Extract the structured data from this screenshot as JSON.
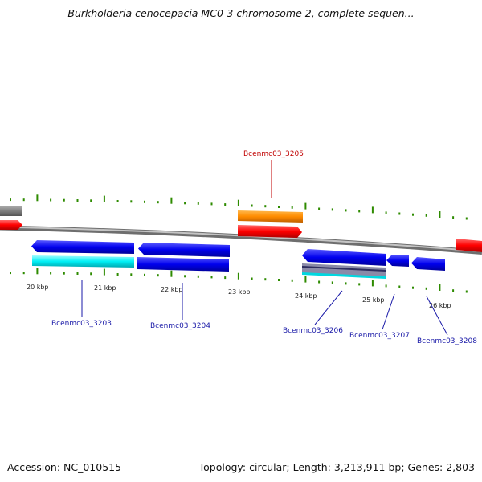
{
  "title": "Burkholderia cenocepacia MC0-3 chromosome 2, complete sequen...",
  "footer": {
    "accession": "Accession: NC_010515",
    "stats": "Topology: circular; Length: 3,213,911 bp; Genes: 2,803"
  },
  "scale_labels": [
    "20 kbp",
    "21 kbp",
    "22 kbp",
    "23 kbp",
    "24 kbp",
    "25 kbp",
    "26 kbp"
  ],
  "gene_labels": [
    {
      "id": "Bcenmc03_3205",
      "color": "#c00000"
    },
    {
      "id": "Bcenmc03_3203",
      "color": "#1a1aa8"
    },
    {
      "id": "Bcenmc03_3204",
      "color": "#1a1aa8"
    },
    {
      "id": "Bcenmc03_3206",
      "color": "#1a1aa8"
    },
    {
      "id": "Bcenmc03_3207",
      "color": "#1a1aa8"
    },
    {
      "id": "Bcenmc03_3208",
      "color": "#1a1aa8"
    }
  ],
  "colors": {
    "backbone": "#8c8c8c",
    "tick": "#2e8b00",
    "forward_cds": "#ff0000",
    "forward_gene": "#ff8c00",
    "reverse_cds": "#0000ee",
    "reverse_gene": "#00e5ee",
    "grey_feature": "#808080"
  }
}
